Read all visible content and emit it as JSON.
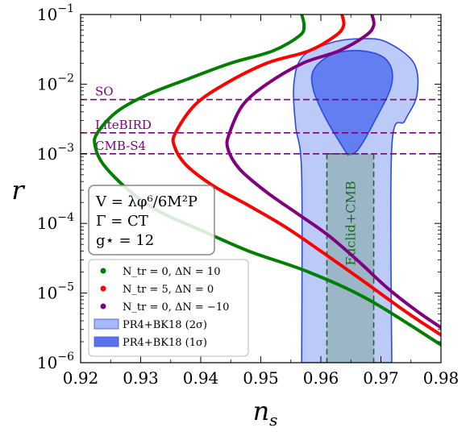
{
  "chart_data": {
    "type": "line",
    "title": "",
    "xlabel": "n_s",
    "ylabel": "r",
    "xlim": [
      0.92,
      0.98
    ],
    "ylim": [
      1e-06,
      0.1
    ],
    "yscale": "log",
    "grid": false,
    "x_ticks": [
      "0.92",
      "0.93",
      "0.94",
      "0.95",
      "0.96",
      "0.97",
      "0.98"
    ],
    "y_tick_labels": [
      {
        "base": "10",
        "exp": "−6",
        "value": 1e-06
      },
      {
        "base": "10",
        "exp": "−5",
        "value": 1e-05
      },
      {
        "base": "10",
        "exp": "−4",
        "value": 0.0001
      },
      {
        "base": "10",
        "exp": "−3",
        "value": 0.001
      },
      {
        "base": "10",
        "exp": "−2",
        "value": 0.01
      },
      {
        "base": "10",
        "exp": "−1",
        "value": 0.1
      }
    ],
    "model_box": {
      "lines": [
        "V = λφ⁶/6M²P",
        "Γ = CT",
        "g⋆ = 12"
      ]
    },
    "series": [
      {
        "name": "N_tr = 0, ΔN = 10",
        "color": "#008000",
        "points": [
          [
            0.9568,
            0.1
          ],
          [
            0.9572,
            0.07
          ],
          [
            0.9565,
            0.05
          ],
          [
            0.952,
            0.03
          ],
          [
            0.945,
            0.02
          ],
          [
            0.938,
            0.012
          ],
          [
            0.931,
            0.007
          ],
          [
            0.926,
            0.004
          ],
          [
            0.9228,
            0.002
          ],
          [
            0.9224,
            0.0013
          ],
          [
            0.9238,
            0.0007
          ],
          [
            0.928,
            0.0003
          ],
          [
            0.933,
            0.00015
          ],
          [
            0.94,
            8e-05
          ],
          [
            0.948,
            4e-05
          ],
          [
            0.958,
            2e-05
          ],
          [
            0.968,
            8e-06
          ],
          [
            0.98,
            1.8e-06
          ]
        ]
      },
      {
        "name": "N_tr = 5, ΔN = 0",
        "color": "#ff0000",
        "points": [
          [
            0.9635,
            0.1
          ],
          [
            0.9638,
            0.07
          ],
          [
            0.9625,
            0.05
          ],
          [
            0.958,
            0.03
          ],
          [
            0.951,
            0.02
          ],
          [
            0.944,
            0.01
          ],
          [
            0.939,
            0.005
          ],
          [
            0.9358,
            0.002
          ],
          [
            0.9356,
            0.0013
          ],
          [
            0.9375,
            0.0007
          ],
          [
            0.942,
            0.00035
          ],
          [
            0.948,
            0.00018
          ],
          [
            0.954,
            9e-05
          ],
          [
            0.96,
            4e-05
          ],
          [
            0.967,
            1.5e-05
          ],
          [
            0.974,
            5.5e-06
          ],
          [
            0.98,
            2.5e-06
          ]
        ]
      },
      {
        "name": "N_tr = 0, ΔN = −10",
        "color": "#800080",
        "points": [
          [
            0.9685,
            0.1
          ],
          [
            0.9688,
            0.07
          ],
          [
            0.9675,
            0.05
          ],
          [
            0.963,
            0.03
          ],
          [
            0.957,
            0.02
          ],
          [
            0.951,
            0.01
          ],
          [
            0.947,
            0.005
          ],
          [
            0.9448,
            0.002
          ],
          [
            0.9445,
            0.0012
          ],
          [
            0.9465,
            0.0006
          ],
          [
            0.951,
            0.00028
          ],
          [
            0.956,
            0.00014
          ],
          [
            0.961,
            7e-05
          ],
          [
            0.966,
            3e-05
          ],
          [
            0.971,
            1.2e-05
          ],
          [
            0.976,
            5.5e-06
          ],
          [
            0.98,
            3.2e-06
          ]
        ]
      }
    ],
    "contours": [
      {
        "name": "PR4+BK18 (2σ)",
        "color": "#6a8aee",
        "opacity": 0.45,
        "points": [
          [
            0.9568,
            1e-06
          ],
          [
            0.9568,
            0.0005
          ],
          [
            0.9558,
            0.0025
          ],
          [
            0.9555,
            0.01
          ],
          [
            0.957,
            0.025
          ],
          [
            0.962,
            0.04
          ],
          [
            0.967,
            0.045
          ],
          [
            0.971,
            0.04
          ],
          [
            0.9755,
            0.02
          ],
          [
            0.976,
            0.007
          ],
          [
            0.974,
            0.003
          ],
          [
            0.9718,
            0.0012
          ],
          [
            0.9718,
            1e-06
          ]
        ]
      },
      {
        "name": "PR4+BK18 (1σ)",
        "color": "#3355ee",
        "opacity": 0.65,
        "points": [
          [
            0.9645,
            0.00095
          ],
          [
            0.961,
            0.003
          ],
          [
            0.9588,
            0.008
          ],
          [
            0.9588,
            0.016
          ],
          [
            0.962,
            0.027
          ],
          [
            0.967,
            0.03
          ],
          [
            0.971,
            0.022
          ],
          [
            0.9718,
            0.01
          ],
          [
            0.969,
            0.003
          ],
          [
            0.9662,
            0.00115
          ],
          [
            0.9645,
            0.00095
          ]
        ]
      }
    ],
    "euclid_cmb": {
      "name": "Euclid+CMB",
      "color": "#2e8b57",
      "x_range": [
        0.961,
        0.9688
      ],
      "y_range": [
        1e-06,
        0.001
      ]
    },
    "horizontal_lines": [
      {
        "label": "SO",
        "value": 0.006,
        "color": "#800080"
      },
      {
        "label": "LiteBIRD",
        "value": 0.002,
        "color": "#800080"
      },
      {
        "label": "CMB-S4",
        "value": 0.001,
        "color": "#800080"
      }
    ],
    "legend": {
      "placement": "lower-left",
      "entries": [
        {
          "kind": "dot",
          "color": "#008000",
          "label": "N_tr = 0, ΔN = 10"
        },
        {
          "kind": "dot",
          "color": "#ff0000",
          "label": "N_tr = 5, ΔN = 0"
        },
        {
          "kind": "dot",
          "color": "#800080",
          "label": "N_tr = 0, ΔN = −10"
        },
        {
          "kind": "patch",
          "color": "#a9b9f5",
          "label": "PR4+BK18 (2σ)"
        },
        {
          "kind": "patch",
          "color": "#5c72e8",
          "label": "PR4+BK18 (1σ)"
        }
      ]
    }
  }
}
